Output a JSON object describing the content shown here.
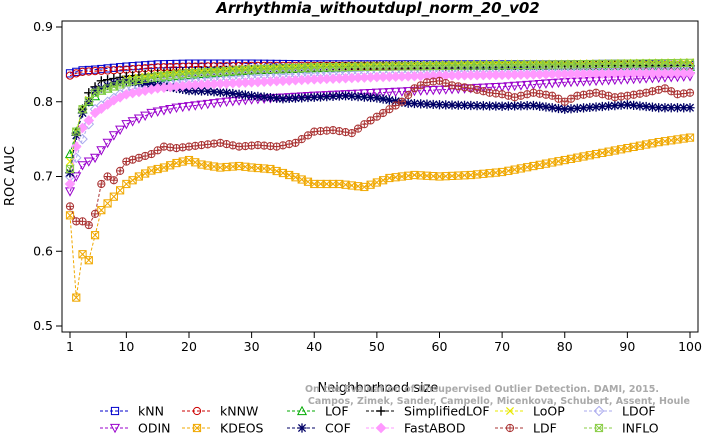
{
  "chart_data": {
    "type": "line",
    "title": "Arrhythmia_withoutdupl_norm_20_v02",
    "xlabel": "Neighborhood size",
    "ylabel": "ROC AUC",
    "xlim": [
      1,
      100
    ],
    "ylim": [
      0.5,
      0.9
    ],
    "xticks": [
      1,
      10,
      20,
      30,
      40,
      50,
      60,
      70,
      80,
      90,
      100
    ],
    "yticks": [
      0.5,
      0.6,
      0.7,
      0.8,
      0.9
    ],
    "legend_position": "bottom",
    "series": [
      {
        "name": "kNN",
        "color": "#0000cc",
        "marker": "square",
        "points": [
          [
            1,
            0.838
          ],
          [
            2,
            0.84
          ],
          [
            3,
            0.842
          ],
          [
            5,
            0.843
          ],
          [
            10,
            0.847
          ],
          [
            15,
            0.85
          ],
          [
            20,
            0.851
          ],
          [
            30,
            0.851
          ],
          [
            40,
            0.85
          ],
          [
            50,
            0.85
          ],
          [
            60,
            0.85
          ],
          [
            70,
            0.85
          ],
          [
            80,
            0.85
          ],
          [
            90,
            0.851
          ],
          [
            100,
            0.849
          ]
        ]
      },
      {
        "name": "kNNW",
        "color": "#cc0000",
        "marker": "circle",
        "points": [
          [
            1,
            0.835
          ],
          [
            2,
            0.838
          ],
          [
            3,
            0.84
          ],
          [
            5,
            0.841
          ],
          [
            10,
            0.843
          ],
          [
            15,
            0.846
          ],
          [
            20,
            0.847
          ],
          [
            30,
            0.848
          ],
          [
            40,
            0.848
          ],
          [
            50,
            0.848
          ],
          [
            60,
            0.848
          ],
          [
            70,
            0.848
          ],
          [
            80,
            0.848
          ],
          [
            90,
            0.849
          ],
          [
            100,
            0.848
          ]
        ]
      },
      {
        "name": "LOF",
        "color": "#00aa00",
        "marker": "triangle",
        "points": [
          [
            1,
            0.73
          ],
          [
            2,
            0.76
          ],
          [
            3,
            0.79
          ],
          [
            4,
            0.8
          ],
          [
            6,
            0.815
          ],
          [
            10,
            0.826
          ],
          [
            15,
            0.832
          ],
          [
            20,
            0.836
          ],
          [
            30,
            0.842
          ],
          [
            40,
            0.845
          ],
          [
            50,
            0.847
          ],
          [
            60,
            0.848
          ],
          [
            70,
            0.848
          ],
          [
            80,
            0.848
          ],
          [
            90,
            0.848
          ],
          [
            100,
            0.847
          ]
        ]
      },
      {
        "name": "SimplifiedLOF",
        "color": "#000000",
        "marker": "plus",
        "points": [
          [
            1,
            0.705
          ],
          [
            2,
            0.758
          ],
          [
            3,
            0.79
          ],
          [
            4,
            0.812
          ],
          [
            6,
            0.828
          ],
          [
            10,
            0.834
          ],
          [
            15,
            0.838
          ],
          [
            20,
            0.84
          ],
          [
            30,
            0.843
          ],
          [
            40,
            0.846
          ],
          [
            50,
            0.848
          ],
          [
            60,
            0.848
          ],
          [
            70,
            0.848
          ],
          [
            80,
            0.848
          ],
          [
            90,
            0.849
          ],
          [
            100,
            0.848
          ]
        ]
      },
      {
        "name": "LoOP",
        "color": "#e8e800",
        "marker": "cross",
        "points": [
          [
            1,
            0.72
          ],
          [
            2,
            0.76
          ],
          [
            3,
            0.79
          ],
          [
            5,
            0.815
          ],
          [
            10,
            0.83
          ],
          [
            15,
            0.836
          ],
          [
            20,
            0.84
          ],
          [
            30,
            0.845
          ],
          [
            40,
            0.848
          ],
          [
            50,
            0.849
          ],
          [
            60,
            0.85
          ],
          [
            70,
            0.851
          ],
          [
            80,
            0.851
          ],
          [
            90,
            0.852
          ],
          [
            100,
            0.853
          ]
        ]
      },
      {
        "name": "LDOF",
        "color": "#aaaaee",
        "marker": "diamond",
        "points": [
          [
            1,
            0.7
          ],
          [
            2,
            0.725
          ],
          [
            3,
            0.75
          ],
          [
            5,
            0.79
          ],
          [
            10,
            0.815
          ],
          [
            15,
            0.825
          ],
          [
            20,
            0.83
          ],
          [
            30,
            0.835
          ],
          [
            40,
            0.838
          ],
          [
            50,
            0.842
          ],
          [
            60,
            0.843
          ],
          [
            70,
            0.844
          ],
          [
            80,
            0.844
          ],
          [
            90,
            0.845
          ],
          [
            100,
            0.845
          ]
        ]
      },
      {
        "name": "ODIN",
        "color": "#9900cc",
        "marker": "triangle-down",
        "points": [
          [
            1,
            0.68
          ],
          [
            2,
            0.7
          ],
          [
            3,
            0.715
          ],
          [
            5,
            0.725
          ],
          [
            8,
            0.755
          ],
          [
            10,
            0.77
          ],
          [
            14,
            0.785
          ],
          [
            18,
            0.792
          ],
          [
            22,
            0.796
          ],
          [
            26,
            0.8
          ],
          [
            30,
            0.803
          ],
          [
            40,
            0.808
          ],
          [
            50,
            0.812
          ],
          [
            60,
            0.816
          ],
          [
            70,
            0.82
          ],
          [
            80,
            0.826
          ],
          [
            90,
            0.83
          ],
          [
            100,
            0.834
          ]
        ]
      },
      {
        "name": "KDEOS",
        "color": "#f0a800",
        "marker": "box-x",
        "points": [
          [
            1,
            0.648
          ],
          [
            2,
            0.538
          ],
          [
            3,
            0.596
          ],
          [
            4,
            0.588
          ],
          [
            6,
            0.655
          ],
          [
            8,
            0.673
          ],
          [
            10,
            0.69
          ],
          [
            12,
            0.7
          ],
          [
            14,
            0.708
          ],
          [
            16,
            0.712
          ],
          [
            18,
            0.718
          ],
          [
            20,
            0.722
          ],
          [
            22,
            0.716
          ],
          [
            25,
            0.712
          ],
          [
            28,
            0.714
          ],
          [
            30,
            0.712
          ],
          [
            33,
            0.71
          ],
          [
            36,
            0.702
          ],
          [
            40,
            0.69
          ],
          [
            44,
            0.69
          ],
          [
            48,
            0.686
          ],
          [
            52,
            0.698
          ],
          [
            56,
            0.702
          ],
          [
            60,
            0.7
          ],
          [
            65,
            0.702
          ],
          [
            70,
            0.706
          ],
          [
            75,
            0.714
          ],
          [
            80,
            0.722
          ],
          [
            85,
            0.73
          ],
          [
            90,
            0.738
          ],
          [
            95,
            0.746
          ],
          [
            100,
            0.752
          ]
        ]
      },
      {
        "name": "COF",
        "color": "#000066",
        "marker": "asterisk",
        "points": [
          [
            1,
            0.705
          ],
          [
            2,
            0.755
          ],
          [
            3,
            0.785
          ],
          [
            5,
            0.815
          ],
          [
            8,
            0.825
          ],
          [
            10,
            0.828
          ],
          [
            12,
            0.826
          ],
          [
            15,
            0.822
          ],
          [
            18,
            0.818
          ],
          [
            20,
            0.815
          ],
          [
            23,
            0.814
          ],
          [
            26,
            0.812
          ],
          [
            30,
            0.808
          ],
          [
            35,
            0.804
          ],
          [
            40,
            0.806
          ],
          [
            45,
            0.808
          ],
          [
            50,
            0.805
          ],
          [
            55,
            0.798
          ],
          [
            60,
            0.796
          ],
          [
            65,
            0.795
          ],
          [
            70,
            0.794
          ],
          [
            75,
            0.795
          ],
          [
            80,
            0.79
          ],
          [
            85,
            0.793
          ],
          [
            90,
            0.796
          ],
          [
            95,
            0.792
          ],
          [
            100,
            0.792
          ]
        ]
      },
      {
        "name": "FastABOD",
        "color": "#ff99ff",
        "marker": "diamond-filled",
        "points": [
          [
            1,
            0.69
          ],
          [
            2,
            0.74
          ],
          [
            3,
            0.765
          ],
          [
            5,
            0.785
          ],
          [
            8,
            0.802
          ],
          [
            10,
            0.81
          ],
          [
            15,
            0.818
          ],
          [
            20,
            0.822
          ],
          [
            30,
            0.826
          ],
          [
            40,
            0.83
          ],
          [
            50,
            0.833
          ],
          [
            60,
            0.835
          ],
          [
            70,
            0.836
          ],
          [
            80,
            0.837
          ],
          [
            90,
            0.838
          ],
          [
            100,
            0.838
          ]
        ]
      },
      {
        "name": "LDF",
        "color": "#aa3333",
        "marker": "circle-plus",
        "points": [
          [
            1,
            0.66
          ],
          [
            2,
            0.64
          ],
          [
            3,
            0.64
          ],
          [
            4,
            0.635
          ],
          [
            5,
            0.65
          ],
          [
            6,
            0.69
          ],
          [
            7,
            0.7
          ],
          [
            8,
            0.695
          ],
          [
            10,
            0.72
          ],
          [
            12,
            0.725
          ],
          [
            14,
            0.73
          ],
          [
            16,
            0.74
          ],
          [
            18,
            0.738
          ],
          [
            20,
            0.74
          ],
          [
            22,
            0.742
          ],
          [
            25,
            0.745
          ],
          [
            28,
            0.74
          ],
          [
            31,
            0.742
          ],
          [
            34,
            0.74
          ],
          [
            37,
            0.745
          ],
          [
            40,
            0.76
          ],
          [
            43,
            0.762
          ],
          [
            46,
            0.758
          ],
          [
            48,
            0.77
          ],
          [
            50,
            0.78
          ],
          [
            52,
            0.79
          ],
          [
            54,
            0.8
          ],
          [
            56,
            0.818
          ],
          [
            58,
            0.826
          ],
          [
            60,
            0.828
          ],
          [
            62,
            0.822
          ],
          [
            65,
            0.818
          ],
          [
            68,
            0.812
          ],
          [
            70,
            0.81
          ],
          [
            72,
            0.806
          ],
          [
            75,
            0.812
          ],
          [
            78,
            0.808
          ],
          [
            80,
            0.8
          ],
          [
            82,
            0.808
          ],
          [
            85,
            0.812
          ],
          [
            88,
            0.806
          ],
          [
            90,
            0.808
          ],
          [
            93,
            0.812
          ],
          [
            96,
            0.818
          ],
          [
            98,
            0.81
          ],
          [
            100,
            0.812
          ]
        ]
      },
      {
        "name": "INFLO",
        "color": "#88cc44",
        "marker": "box-x",
        "points": [
          [
            1,
            0.71
          ],
          [
            2,
            0.76
          ],
          [
            3,
            0.79
          ],
          [
            5,
            0.812
          ],
          [
            10,
            0.826
          ],
          [
            15,
            0.834
          ],
          [
            20,
            0.838
          ],
          [
            30,
            0.843
          ],
          [
            40,
            0.846
          ],
          [
            50,
            0.847
          ],
          [
            60,
            0.848
          ],
          [
            70,
            0.849
          ],
          [
            80,
            0.85
          ],
          [
            90,
            0.851
          ],
          [
            100,
            0.852
          ]
        ]
      }
    ],
    "legend": [
      {
        "series": "kNN",
        "col": 0,
        "row": 0
      },
      {
        "series": "kNNW",
        "col": 1,
        "row": 0
      },
      {
        "series": "LOF",
        "col": 2,
        "row": 0
      },
      {
        "series": "SimplifiedLOF",
        "col": 3,
        "row": 0
      },
      {
        "series": "LoOP",
        "col": 4,
        "row": 0
      },
      {
        "series": "LDOF",
        "col": 5,
        "row": 0
      },
      {
        "series": "ODIN",
        "col": 0,
        "row": 1
      },
      {
        "series": "KDEOS",
        "col": 1,
        "row": 1
      },
      {
        "series": "COF",
        "col": 2,
        "row": 1
      },
      {
        "series": "FastABOD",
        "col": 3,
        "row": 1
      },
      {
        "series": "LDF",
        "col": 4,
        "row": 1
      },
      {
        "series": "INFLO",
        "col": 5,
        "row": 1
      }
    ],
    "watermark": [
      "On the Evaluation of Unsupervised Outlier Detection. DAMI, 2015.",
      "Campos, Zimek, Sander, Campello, Micenkova, Schubert, Assent, Houle"
    ]
  }
}
